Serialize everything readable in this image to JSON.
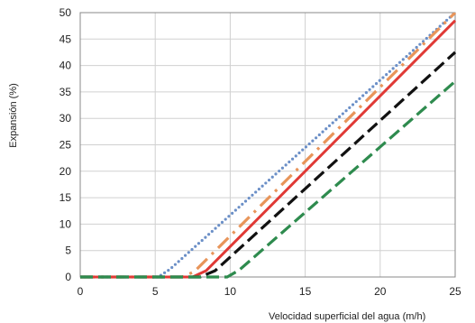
{
  "chart_data": {
    "type": "line",
    "title": "",
    "xlabel": "Velocidad superficial del agua (m/h)",
    "ylabel": "Expansión (%)",
    "xlim": [
      0,
      25
    ],
    "ylim": [
      0,
      50
    ],
    "x_ticks": [
      "0",
      "5",
      "10",
      "15",
      "20",
      "25"
    ],
    "y_ticks": [
      "0",
      "5",
      "10",
      "15",
      "20",
      "25",
      "30",
      "35",
      "40",
      "45",
      "50"
    ],
    "grid": true,
    "legend": "none",
    "series": [
      {
        "color": "#6b8fc7",
        "dash": "dotted",
        "x": [
          0,
          5.2,
          6.0,
          25
        ],
        "y": [
          0,
          0,
          1.5,
          50
        ]
      },
      {
        "color": "#e8955a",
        "dash": "dashdot",
        "x": [
          0,
          6.8,
          7.6,
          25
        ],
        "y": [
          0,
          0,
          1.0,
          50
        ]
      },
      {
        "color": "#e03a36",
        "dash": "solid",
        "x": [
          0,
          7.5,
          8.4,
          25
        ],
        "y": [
          0,
          0,
          1.2,
          48.5
        ]
      },
      {
        "color": "#111111",
        "dash": "dashed",
        "x": [
          0,
          8.0,
          9.0,
          25
        ],
        "y": [
          0,
          0,
          1.2,
          42.5
        ]
      },
      {
        "color": "#2e8b4e",
        "dash": "dashed",
        "x": [
          0,
          9.8,
          10.6,
          25
        ],
        "y": [
          0,
          0,
          1.3,
          37
        ]
      }
    ]
  }
}
